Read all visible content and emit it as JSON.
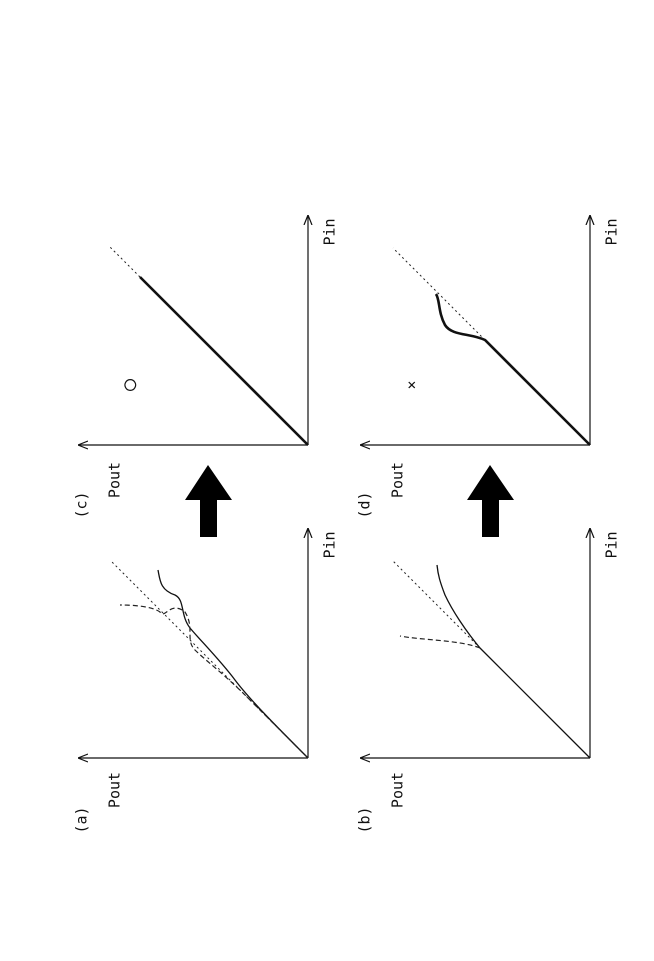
{
  "panels": [
    {
      "label": "(a)",
      "y_axis": "Pout",
      "x_axis": "Pin"
    },
    {
      "label": "(b)",
      "y_axis": "Pout",
      "x_axis": "Pin"
    },
    {
      "label": "(c)",
      "y_axis": "Pout",
      "x_axis": "Pin",
      "mark": "○"
    },
    {
      "label": "(d)",
      "y_axis": "Pout",
      "x_axis": "Pin",
      "mark": "×"
    }
  ]
}
